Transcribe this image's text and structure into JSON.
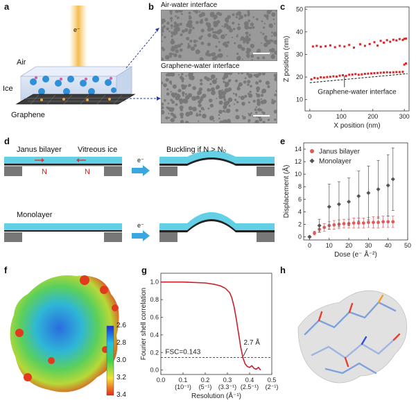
{
  "panels": {
    "a": {
      "letter": "a",
      "electron": "e⁻",
      "air": "Air",
      "ice": "Ice",
      "graphene": "Graphene"
    },
    "b": {
      "letter": "b",
      "top_title": "Air-water interface",
      "bottom_title": "Graphene-water interface"
    },
    "d": {
      "letter": "d",
      "janus": "Janus bilayer",
      "vitreous": "Vitreous ice",
      "n1": "N",
      "n2": "N",
      "electron1": "e⁻",
      "buckling": "Buckling if N > N₀",
      "monolayer": "Monolayer",
      "electron2": "e⁻"
    },
    "f": {
      "letter": "f",
      "colorbar_ticks": [
        "2.6",
        "2.8",
        "3.0",
        "3.2",
        "3.4"
      ]
    },
    "h": {
      "letter": "h"
    }
  },
  "chart_data": [
    {
      "id": "c",
      "letter": "c",
      "type": "scatter",
      "xlabel": "X position (nm)",
      "ylabel": "Z position (nm)",
      "xlim": [
        -15,
        315
      ],
      "ylim": [
        5,
        51
      ],
      "xticks": [
        0,
        100,
        200,
        300
      ],
      "yticks": [
        10,
        20,
        30,
        40,
        50
      ],
      "annotation": "Graphene-water interface",
      "series": [
        {
          "points": [
            [
              10,
              33.5
            ],
            [
              22,
              33.8
            ],
            [
              35,
              33.4
            ],
            [
              50,
              33.6
            ],
            [
              65,
              34.0
            ],
            [
              80,
              33.2
            ],
            [
              95,
              33.8
            ],
            [
              110,
              33.5
            ],
            [
              125,
              34.2
            ],
            [
              140,
              33.0
            ],
            [
              160,
              34.5
            ],
            [
              175,
              33.8
            ],
            [
              190,
              34.6
            ],
            [
              205,
              35.4
            ],
            [
              215,
              33.9
            ],
            [
              225,
              36.0
            ],
            [
              235,
              35.2
            ],
            [
              245,
              36.3
            ],
            [
              255,
              35.6
            ],
            [
              265,
              36.5
            ],
            [
              275,
              36.2
            ],
            [
              285,
              36.8
            ],
            [
              295,
              36.4
            ],
            [
              300,
              36.9
            ],
            [
              305,
              37.0
            ]
          ]
        },
        {
          "points": [
            [
              5,
              19.0
            ],
            [
              15,
              19.6
            ],
            [
              25,
              19.4
            ],
            [
              35,
              19.9
            ],
            [
              45,
              19.8
            ],
            [
              55,
              20.0
            ],
            [
              65,
              20.1
            ],
            [
              75,
              20.3
            ],
            [
              85,
              20.2
            ],
            [
              95,
              20.6
            ],
            [
              105,
              20.8
            ],
            [
              115,
              20.5
            ],
            [
              125,
              21.0
            ],
            [
              135,
              21.1
            ],
            [
              145,
              21.3
            ],
            [
              155,
              21.0
            ],
            [
              165,
              21.2
            ],
            [
              175,
              21.4
            ],
            [
              185,
              21.5
            ],
            [
              195,
              21.6
            ],
            [
              205,
              21.7
            ],
            [
              215,
              21.8
            ],
            [
              225,
              21.9
            ],
            [
              235,
              22.0
            ],
            [
              245,
              22.1
            ],
            [
              255,
              22.0
            ],
            [
              265,
              22.1
            ],
            [
              275,
              22.2
            ],
            [
              285,
              22.2
            ],
            [
              295,
              22.3
            ],
            [
              300,
              25.5
            ],
            [
              305,
              26.0
            ]
          ]
        }
      ],
      "fit_line": [
        [
          0,
          17.5
        ],
        [
          310,
          21.5
        ]
      ]
    },
    {
      "id": "e",
      "letter": "e",
      "type": "scatter",
      "xlabel": "Dose (e⁻ Å⁻²)",
      "ylabel": "Displacement (Å)",
      "xlim": [
        -3,
        50
      ],
      "ylim": [
        -0.5,
        15
      ],
      "xticks": [
        0,
        10,
        20,
        30,
        40,
        50
      ],
      "yticks": [
        0,
        2,
        4,
        6,
        8,
        10,
        12,
        14
      ],
      "legend_position": "top-left",
      "series": [
        {
          "name": "Janus bilayer",
          "color": "#e05a5a",
          "x": [
            0,
            2.5,
            5,
            7.5,
            10,
            12.5,
            15,
            17.5,
            20,
            22.5,
            25,
            27.5,
            30,
            32.5,
            35,
            37.5,
            40,
            42.5
          ],
          "y": [
            0,
            0.6,
            1.2,
            1.5,
            1.8,
            1.9,
            2.0,
            2.1,
            2.1,
            2.2,
            2.2,
            2.2,
            2.3,
            2.3,
            2.3,
            2.4,
            2.4,
            2.4
          ],
          "err": [
            0,
            0.3,
            0.5,
            0.6,
            0.6,
            0.7,
            0.7,
            0.7,
            0.7,
            0.8,
            0.8,
            0.8,
            0.8,
            0.9,
            0.9,
            0.9,
            0.9,
            0.9
          ]
        },
        {
          "name": "Monolayer",
          "color": "#555555",
          "x": [
            0,
            5,
            10,
            15,
            20,
            25,
            30,
            35,
            40,
            42.5
          ],
          "y": [
            0,
            1.8,
            4.8,
            5.2,
            5.6,
            6.5,
            7.0,
            7.6,
            8.2,
            9.2
          ],
          "err": [
            0,
            1.0,
            3.6,
            3.6,
            3.8,
            4.0,
            4.3,
            4.6,
            4.9,
            5.0
          ]
        }
      ]
    },
    {
      "id": "g",
      "letter": "g",
      "type": "line",
      "xlabel": "Resolution (Å⁻¹)",
      "ylabel": "Fourier shell correlation",
      "xlim": [
        0,
        0.5
      ],
      "ylim": [
        -0.05,
        1.1
      ],
      "xticks": [
        0,
        0.1,
        0.2,
        0.3,
        0.4,
        0.5
      ],
      "xtick_labels": [
        "0.0",
        "0.1",
        "0.2",
        "0.3",
        "0.4",
        "0.5"
      ],
      "xtick_sublabels": [
        "",
        "(10⁻¹)",
        "(5⁻¹)",
        "(3.3⁻¹)",
        "(2.5⁻¹)",
        "(2⁻¹)"
      ],
      "yticks": [
        0,
        0.2,
        0.4,
        0.6,
        0.8,
        1.0
      ],
      "ytick_labels": [
        "0.0",
        "0.2",
        "0.4",
        "0.6",
        "0.8",
        "1.0"
      ],
      "threshold": 0.143,
      "threshold_label": "FSC=0.143",
      "annotation": "2.7 Å",
      "x": [
        0,
        0.05,
        0.1,
        0.15,
        0.2,
        0.24,
        0.27,
        0.29,
        0.31,
        0.32,
        0.33,
        0.34,
        0.35,
        0.36,
        0.37,
        0.38,
        0.39,
        0.4,
        0.41,
        0.42,
        0.43,
        0.44,
        0.45
      ],
      "y": [
        1.0,
        1.0,
        1.0,
        0.995,
        0.99,
        0.975,
        0.955,
        0.93,
        0.88,
        0.82,
        0.72,
        0.58,
        0.42,
        0.26,
        0.14,
        0.07,
        0.04,
        0.03,
        0.05,
        0.02,
        0.01,
        0.03,
        0.0
      ]
    }
  ]
}
